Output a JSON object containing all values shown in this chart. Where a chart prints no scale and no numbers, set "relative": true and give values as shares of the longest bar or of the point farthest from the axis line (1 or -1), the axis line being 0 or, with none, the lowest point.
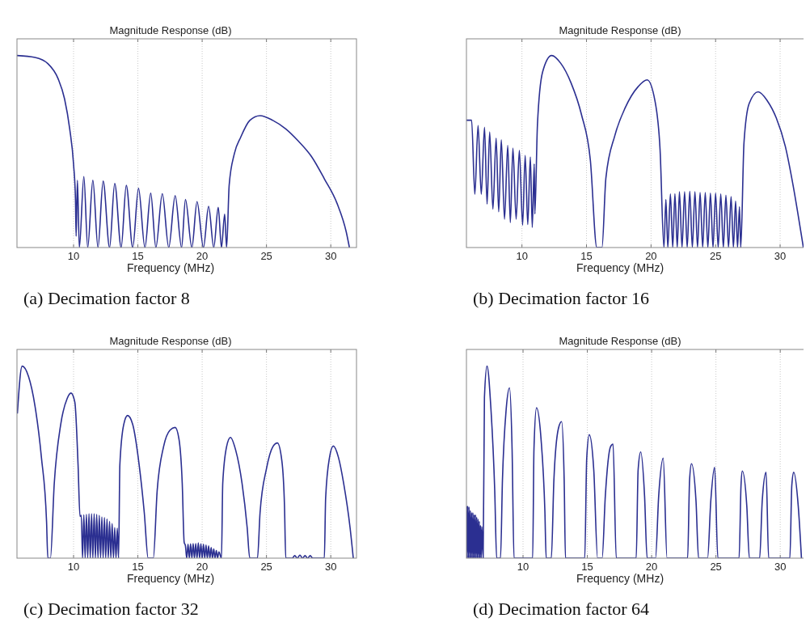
{
  "chart_data": [
    {
      "type": "line",
      "title": "Magnitude Response (dB)",
      "xlabel": "Frequency (MHz)",
      "annotations": [
        "(a) Decimation factor 8"
      ],
      "relative": true,
      "grid": "x",
      "color": "#2b2f91",
      "xlim": [
        5.6,
        32
      ],
      "xticks": [
        10,
        15,
        20,
        25,
        30
      ],
      "x": [
        5.6,
        7,
        8,
        8.8,
        9.3,
        9.7,
        10,
        10.15,
        10.2,
        10.3,
        10.45,
        10.8,
        11.1,
        11.5,
        11.9,
        12.3,
        12.8,
        13.2,
        13.7,
        14.1,
        14.6,
        15.05,
        15.55,
        16,
        16.4,
        16.9,
        17.4,
        17.9,
        18.4,
        18.7,
        19.2,
        19.6,
        20.1,
        20.5,
        20.9,
        21.25,
        21.5,
        21.75,
        21.9,
        22.1,
        22.5,
        23,
        23.7,
        24.5,
        25.5,
        26.5,
        27.5,
        28.5,
        29.5,
        30.5,
        31.2,
        31.45
      ],
      "values": [
        1,
        0.99,
        0.958,
        0.879,
        0.774,
        0.618,
        0.434,
        0.249,
        0.059,
        0.35,
        0,
        0.37,
        0,
        0.35,
        0,
        0.346,
        0,
        0.334,
        0,
        0.324,
        0,
        0.308,
        0,
        0.283,
        0,
        0.28,
        0,
        0.27,
        0,
        0.25,
        0,
        0.239,
        0,
        0.215,
        0,
        0.209,
        0,
        0.174,
        0,
        0.325,
        0.488,
        0.575,
        0.662,
        0.687,
        0.662,
        0.618,
        0.553,
        0.474,
        0.358,
        0.228,
        0.082,
        0
      ]
    },
    {
      "type": "line",
      "title": "Magnitude Response (dB)",
      "xlabel": "Frequency (MHz)",
      "annotations": [
        "(b) Decimation factor 16"
      ],
      "relative": true,
      "grid": "x",
      "color": "#2b2f91",
      "xlim": [
        5.7,
        32
      ],
      "xticks": [
        10,
        15,
        20,
        25,
        30
      ],
      "x": [
        5.7,
        6.1,
        6.35,
        6.6,
        6.85,
        7.1,
        7.3,
        7.5,
        7.75,
        8.0,
        8.2,
        8.4,
        8.65,
        8.9,
        9.1,
        9.3,
        9.55,
        9.8,
        10.05,
        10.25,
        10.45,
        10.65,
        10.8,
        10.95,
        11.0,
        11.2,
        11.6,
        12.3,
        13,
        13.8,
        14.6,
        15.3,
        15.8,
        16.2,
        16.5,
        17.2,
        18,
        19,
        19.7,
        20.3,
        20.7,
        21.0,
        21.15,
        21.3,
        21.5,
        21.68,
        21.85,
        22.03,
        22.2,
        22.4,
        22.6,
        22.8,
        23.0,
        23.2,
        23.4,
        23.6,
        23.8,
        24.0,
        24.2,
        24.4,
        24.6,
        24.8,
        25.0,
        25.2,
        25.4,
        25.6,
        25.8,
        26.0,
        26.2,
        26.38,
        26.55,
        26.7,
        26.85,
        26.95,
        27.2,
        27.6,
        28.3,
        29,
        29.7,
        30.4,
        31,
        31.6,
        31.8
      ],
      "values": [
        0.663,
        0.663,
        0.277,
        0.636,
        0.277,
        0.626,
        0.226,
        0.602,
        0.2,
        0.57,
        0.186,
        0.561,
        0.148,
        0.532,
        0.13,
        0.518,
        0.148,
        0.506,
        0.117,
        0.48,
        0.12,
        0.472,
        0.105,
        0.436,
        0.175,
        0.639,
        0.914,
        1,
        0.96,
        0.858,
        0.695,
        0.454,
        0,
        0,
        0.361,
        0.584,
        0.728,
        0.838,
        0.873,
        0.765,
        0.509,
        0,
        0.25,
        0,
        0.279,
        0,
        0.28,
        0,
        0.29,
        0,
        0.29,
        0,
        0.293,
        0,
        0.29,
        0,
        0.286,
        0,
        0.286,
        0,
        0.283,
        0,
        0.283,
        0,
        0.279,
        0,
        0.273,
        0,
        0.265,
        0,
        0.242,
        0,
        0.213,
        0,
        0.546,
        0.75,
        0.811,
        0.765,
        0.675,
        0.527,
        0.325,
        0.084,
        0
      ]
    },
    {
      "type": "line",
      "title": "Magnitude Response (dB)",
      "xlabel": "Frequency (MHz)",
      "annotations": [
        "(c) Decimation factor 32"
      ],
      "relative": true,
      "grid": "x",
      "color": "#2b2f91",
      "xlim": [
        5.6,
        32
      ],
      "xticks": [
        10,
        15,
        20,
        25,
        30
      ],
      "x": [
        5.63,
        6.0,
        6.5,
        7.0,
        7.5,
        7.9,
        8.0,
        8.2,
        8.5,
        9.0,
        9.5,
        9.8,
        10.1,
        10.35,
        10.5,
        10.6,
        10.7,
        10.8,
        10.9,
        11.0,
        11.1,
        11.2,
        11.3,
        11.4,
        11.5,
        11.6,
        11.7,
        11.8,
        11.9,
        12.0,
        12.1,
        12.2,
        12.3,
        12.4,
        12.5,
        12.6,
        12.7,
        12.8,
        12.9,
        13.0,
        13.1,
        13.2,
        13.3,
        13.4,
        13.5,
        13.6,
        13.9,
        14.2,
        14.6,
        15.1,
        15.5,
        15.8,
        16.2,
        16.5,
        17.0,
        17.5,
        17.9,
        18.2,
        18.45,
        18.6,
        18.7,
        18.8,
        18.9,
        19.0,
        19.1,
        19.2,
        19.3,
        19.4,
        19.5,
        19.6,
        19.7,
        19.8,
        19.9,
        20.0,
        20.1,
        20.2,
        20.3,
        20.4,
        20.5,
        20.6,
        20.7,
        20.8,
        20.9,
        21.0,
        21.1,
        21.2,
        21.3,
        21.5,
        21.6,
        21.9,
        22.2,
        22.6,
        23.1,
        23.5,
        23.7,
        24.3,
        24.5,
        25,
        25.5,
        25.85,
        26.2,
        26.4,
        26.5,
        27.0,
        27.2,
        27.4,
        27.6,
        27.8,
        28.0,
        28.2,
        28.4,
        28.6,
        29.5,
        29.6,
        29.9,
        30.2,
        30.6,
        31.0,
        31.5,
        31.75
      ],
      "values": [
        0.753,
        1,
        0.946,
        0.793,
        0.525,
        0.191,
        0,
        0,
        0.39,
        0.696,
        0.831,
        0.86,
        0.812,
        0.486,
        0.217,
        0.223,
        0,
        0.226,
        0,
        0.228,
        0,
        0.231,
        0,
        0.231,
        0,
        0.231,
        0,
        0.228,
        0,
        0.223,
        0,
        0.215,
        0,
        0.212,
        0,
        0.204,
        0,
        0.191,
        0,
        0.18,
        0,
        0.159,
        0,
        0.156,
        0,
        0.486,
        0.696,
        0.743,
        0.696,
        0.486,
        0.236,
        0,
        0,
        0.35,
        0.581,
        0.667,
        0.681,
        0.619,
        0.39,
        0.083,
        0.064,
        0,
        0.072,
        0,
        0.075,
        0,
        0.076,
        0,
        0.076,
        0,
        0.08,
        0,
        0.075,
        0,
        0.072,
        0,
        0.068,
        0,
        0.064,
        0,
        0.056,
        0,
        0.048,
        0,
        0.04,
        0,
        0.032,
        0,
        0.39,
        0.581,
        0.629,
        0.564,
        0.39,
        0.159,
        0,
        0,
        0.236,
        0.466,
        0.581,
        0.6,
        0.505,
        0.274,
        0,
        0,
        0.013,
        0,
        0.016,
        0,
        0.013,
        0,
        0.013,
        0,
        0,
        0.312,
        0.524,
        0.584,
        0.524,
        0.39,
        0.159,
        0
      ]
    },
    {
      "type": "line",
      "title": "Magnitude Response (dB)",
      "xlabel": "Frequency (MHz)",
      "annotations": [
        "(d) Decimation factor 64"
      ],
      "relative": true,
      "grid": "x",
      "color": "#2b2f91",
      "xlim": [
        5.6,
        32
      ],
      "xticks": [
        10,
        15,
        20,
        25,
        30
      ],
      "x": [
        5.6,
        5.65,
        5.7,
        5.75,
        5.8,
        5.85,
        5.9,
        5.95,
        6.0,
        6.05,
        6.1,
        6.15,
        6.2,
        6.25,
        6.3,
        6.35,
        6.4,
        6.45,
        6.5,
        6.55,
        6.6,
        6.65,
        6.7,
        6.75,
        6.8,
        6.9,
        7.0,
        7.2,
        7.5,
        7.8,
        7.95,
        8.25,
        8.4,
        8.7,
        8.95,
        9.15,
        9.3,
        10.75,
        10.85,
        11.05,
        11.4,
        11.7,
        11.8,
        12.2,
        12.4,
        12.75,
        13.0,
        13.2,
        13.3,
        14.8,
        14.95,
        15.15,
        15.5,
        15.8,
        16.15,
        16.4,
        16.8,
        17.0,
        17.25,
        18.8,
        18.95,
        19.15,
        19.45,
        19.65,
        20.3,
        20.55,
        20.9,
        21.2,
        22.8,
        22.95,
        23.1,
        23.45,
        23.65,
        24.35,
        24.6,
        24.9,
        25.15,
        26.8,
        26.95,
        27.05,
        27.4,
        27.6,
        28.4,
        28.6,
        28.9,
        29.1,
        30.75,
        30.9,
        31.05,
        31.4,
        31.65
      ],
      "values": [
        0.271,
        0,
        0.271,
        0,
        0.266,
        0,
        0.248,
        0,
        0.237,
        0,
        0.237,
        0,
        0.226,
        0,
        0.226,
        0,
        0.214,
        0,
        0.203,
        0,
        0.192,
        0,
        0.169,
        0,
        0.163,
        0,
        0.837,
        1,
        0.783,
        0.352,
        0,
        0,
        0.406,
        0.783,
        0.887,
        0.567,
        0,
        0,
        0.567,
        0.783,
        0.621,
        0.244,
        0,
        0,
        0.406,
        0.675,
        0.711,
        0.406,
        0,
        0,
        0.515,
        0.643,
        0.46,
        0,
        0,
        0.325,
        0.58,
        0.594,
        0,
        0,
        0.46,
        0.553,
        0.325,
        0,
        0,
        0.325,
        0.521,
        0,
        0,
        0.406,
        0.492,
        0.298,
        0,
        0,
        0.298,
        0.474,
        0,
        0,
        0.379,
        0.454,
        0.271,
        0,
        0,
        0.298,
        0.447,
        0,
        0,
        0.379,
        0.447,
        0.271,
        0
      ]
    }
  ]
}
